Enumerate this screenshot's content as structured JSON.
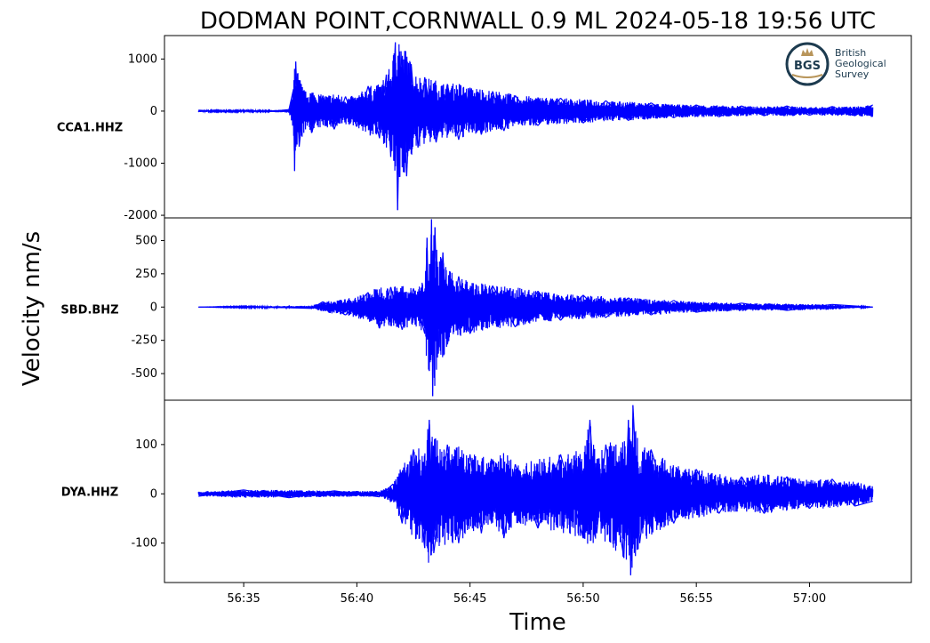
{
  "title": "DODMAN POINT,CORNWALL 0.9 ML   2024-05-18 19:56 UTC",
  "logo": {
    "mark": "BGS",
    "lines": [
      "British",
      "Geological",
      "Survey"
    ],
    "colors": {
      "ink": "#1d3b4f",
      "gold": "#b8955a"
    }
  },
  "chart_data": {
    "type": "line",
    "title": "DODMAN POINT,CORNWALL 0.9 ML   2024-05-18 19:56 UTC",
    "xlabel": "Time",
    "ylabel": "Velocity nm/s",
    "x_ticks": [
      "56:35",
      "56:40",
      "56:45",
      "56:50",
      "56:55",
      "57:00"
    ],
    "x_range_seconds": [
      31.5,
      64.5
    ],
    "series_color": "#0000ff",
    "panels": [
      {
        "station": "CCA1.HHZ",
        "ylim": [
          -2050,
          1450
        ],
        "y_ticks": [
          1000,
          0,
          -1000,
          -2000
        ],
        "y_tick_labels": [
          "1000",
          "0",
          "-1000",
          "-2000"
        ],
        "x_start_s": 33.0,
        "x_end_s": 62.8,
        "samples": [
          [
            33.0,
            20
          ],
          [
            34.0,
            -10
          ],
          [
            35.0,
            15
          ],
          [
            36.0,
            -15
          ],
          [
            37.0,
            30
          ],
          [
            37.2,
            420
          ],
          [
            37.25,
            -1150
          ],
          [
            37.3,
            950
          ],
          [
            37.45,
            -680
          ],
          [
            37.7,
            380
          ],
          [
            38.0,
            -420
          ],
          [
            38.5,
            300
          ],
          [
            39.0,
            -350
          ],
          [
            39.5,
            280
          ],
          [
            40.0,
            -300
          ],
          [
            40.5,
            480
          ],
          [
            41.0,
            -520
          ],
          [
            41.3,
            700
          ],
          [
            41.5,
            -880
          ],
          [
            41.7,
            1320
          ],
          [
            41.8,
            -1900
          ],
          [
            41.95,
            1150
          ],
          [
            42.2,
            -1250
          ],
          [
            42.4,
            900
          ],
          [
            42.7,
            -700
          ],
          [
            43.0,
            650
          ],
          [
            43.5,
            -600
          ],
          [
            44.0,
            520
          ],
          [
            44.5,
            -550
          ],
          [
            45.0,
            450
          ],
          [
            45.5,
            -450
          ],
          [
            46.0,
            380
          ],
          [
            46.5,
            -380
          ],
          [
            47.0,
            300
          ],
          [
            48.0,
            -280
          ],
          [
            49.0,
            250
          ],
          [
            50.0,
            -230
          ],
          [
            51.0,
            200
          ],
          [
            52.0,
            -180
          ],
          [
            53.0,
            160
          ],
          [
            54.0,
            -130
          ],
          [
            55.0,
            120
          ],
          [
            56.0,
            -110
          ],
          [
            57.0,
            100
          ],
          [
            58.0,
            -90
          ],
          [
            59.0,
            100
          ],
          [
            60.0,
            -80
          ],
          [
            61.0,
            90
          ],
          [
            62.0,
            -90
          ],
          [
            62.8,
            120
          ]
        ]
      },
      {
        "station": "SBD.BHZ",
        "ylim": [
          -700,
          670
        ],
        "y_ticks": [
          500,
          250,
          0,
          -250,
          -500
        ],
        "y_tick_labels": [
          "500",
          "250",
          "0",
          "-250",
          "-500"
        ],
        "x_start_s": 33.0,
        "x_end_s": 62.8,
        "samples": [
          [
            33.0,
            0
          ],
          [
            35.0,
            5
          ],
          [
            38.0,
            -10
          ],
          [
            38.5,
            40
          ],
          [
            39.5,
            -60
          ],
          [
            40.5,
            110
          ],
          [
            41.0,
            -160
          ],
          [
            41.5,
            150
          ],
          [
            42.0,
            -170
          ],
          [
            42.5,
            140
          ],
          [
            43.0,
            -200
          ],
          [
            43.1,
            520
          ],
          [
            43.2,
            -480
          ],
          [
            43.3,
            660
          ],
          [
            43.35,
            -670
          ],
          [
            43.45,
            600
          ],
          [
            43.6,
            -350
          ],
          [
            43.8,
            410
          ],
          [
            44.0,
            -280
          ],
          [
            44.5,
            230
          ],
          [
            45.0,
            -200
          ],
          [
            46.0,
            160
          ],
          [
            47.0,
            -150
          ],
          [
            48.0,
            120
          ],
          [
            49.0,
            -100
          ],
          [
            50.0,
            90
          ],
          [
            51.0,
            -80
          ],
          [
            52.0,
            70
          ],
          [
            53.0,
            -60
          ],
          [
            54.0,
            50
          ],
          [
            55.0,
            -40
          ],
          [
            57.0,
            30
          ],
          [
            59.0,
            -25
          ],
          [
            61.0,
            20
          ],
          [
            62.8,
            0
          ]
        ]
      },
      {
        "station": "DYA.HHZ",
        "ylim": [
          -180,
          190
        ],
        "y_ticks": [
          100,
          0,
          -100
        ],
        "y_tick_labels": [
          "100",
          "0",
          "-100"
        ],
        "x_start_s": 33.0,
        "x_end_s": 62.8,
        "samples": [
          [
            33.0,
            -5
          ],
          [
            35.0,
            8
          ],
          [
            37.0,
            -8
          ],
          [
            39.0,
            6
          ],
          [
            41.0,
            -6
          ],
          [
            41.6,
            20
          ],
          [
            42.0,
            -60
          ],
          [
            42.5,
            90
          ],
          [
            43.0,
            -110
          ],
          [
            43.2,
            150
          ],
          [
            43.4,
            -120
          ],
          [
            44.0,
            100
          ],
          [
            44.5,
            -100
          ],
          [
            45.0,
            80
          ],
          [
            45.5,
            -80
          ],
          [
            46.0,
            70
          ],
          [
            46.5,
            -90
          ],
          [
            47.0,
            60
          ],
          [
            48.0,
            -70
          ],
          [
            49.0,
            80
          ],
          [
            50.0,
            -90
          ],
          [
            50.3,
            150
          ],
          [
            50.6,
            -80
          ],
          [
            51.0,
            100
          ],
          [
            51.8,
            -130
          ],
          [
            52.0,
            150
          ],
          [
            52.1,
            -165
          ],
          [
            52.2,
            180
          ],
          [
            52.5,
            -100
          ],
          [
            53.0,
            90
          ],
          [
            54.0,
            -60
          ],
          [
            55.0,
            50
          ],
          [
            56.0,
            -40
          ],
          [
            57.0,
            35
          ],
          [
            58.0,
            -40
          ],
          [
            59.0,
            35
          ],
          [
            60.0,
            -30
          ],
          [
            61.0,
            30
          ],
          [
            62.0,
            -25
          ],
          [
            62.8,
            -15
          ]
        ]
      }
    ]
  }
}
